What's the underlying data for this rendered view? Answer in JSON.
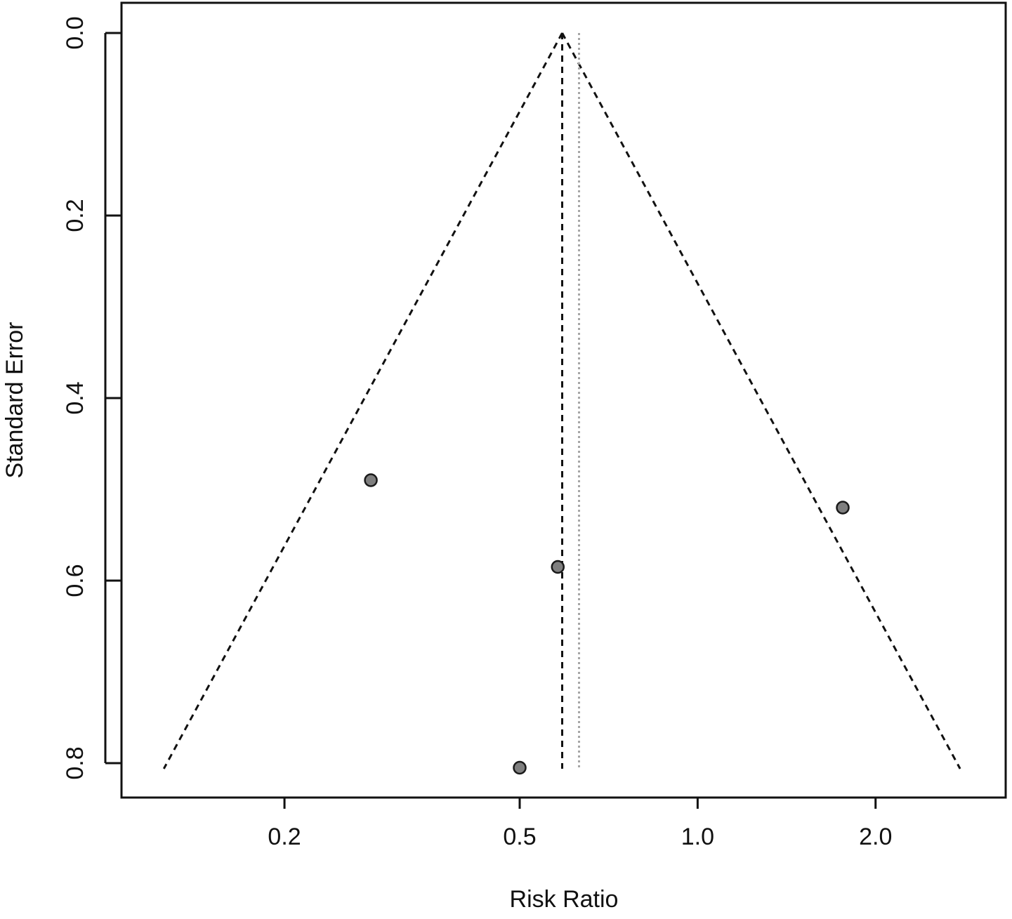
{
  "chart_data": {
    "type": "scatter",
    "title": "",
    "xlabel": "Risk Ratio",
    "ylabel": "Standard Error",
    "x_scale": "log",
    "y_reversed": true,
    "x_ticks": [
      {
        "value": 0.2,
        "label": "0.2"
      },
      {
        "value": 0.5,
        "label": "0.5"
      },
      {
        "value": 1.0,
        "label": "1.0"
      },
      {
        "value": 2.0,
        "label": "2.0"
      }
    ],
    "y_ticks": [
      {
        "value": 0.0,
        "label": "0.0"
      },
      {
        "value": 0.2,
        "label": "0.2"
      },
      {
        "value": 0.4,
        "label": "0.4"
      },
      {
        "value": 0.6,
        "label": "0.6"
      },
      {
        "value": 0.8,
        "label": "0.8"
      }
    ],
    "xlim": [
      0.106,
      3.32
    ],
    "ylim": [
      0.0,
      0.8
    ],
    "points": [
      {
        "x": 0.28,
        "y": 0.49
      },
      {
        "x": 0.58,
        "y": 0.585
      },
      {
        "x": 0.5,
        "y": 0.805
      },
      {
        "x": 1.76,
        "y": 0.52
      }
    ],
    "reference_lines": {
      "summary_estimate": 0.59,
      "null_like_dotted": 0.63,
      "funnel_apex_se": 0.0,
      "funnel_base_se": 0.8,
      "funnel_left_base_x": 0.125,
      "funnel_right_base_x": 2.78
    },
    "colors": {
      "point_fill": "#7f7f7f",
      "point_stroke": "#1a1a1a",
      "dashed_line": "#111111",
      "dotted_line": "#a6a6a6",
      "frame": "#111111"
    },
    "grid": false,
    "legend": "none"
  }
}
